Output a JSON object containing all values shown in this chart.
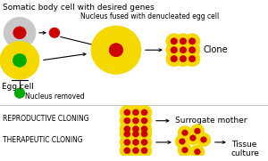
{
  "bg_color": "#ffffff",
  "text_color": "#000000",
  "cell_yellow": "#f5d800",
  "cell_gray": "#c8c8c8",
  "nucleus_red": "#cc0000",
  "nucleus_green": "#00aa00",
  "labels": {
    "somatic": "Somatic body cell with desired genes",
    "nucleus_fused": "Nucleus fused with denucleated egg cell",
    "clone": "Clone",
    "egg_cell": "Egg cell",
    "nucleus_removed": "Nucleus removed",
    "reproductive": "REPRODUCTIVE CLONING",
    "surrogate": "Surrogate mother",
    "therapeutic": "THERAPEUTIC CLONING",
    "tissue": "Tissue\nculture"
  },
  "font_sizes": {
    "main": 6.5,
    "small": 5.5,
    "clone_label": 7.0,
    "section_label": 5.5,
    "section_result": 6.5
  }
}
